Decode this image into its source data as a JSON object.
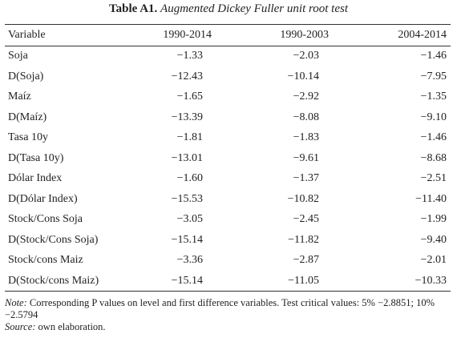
{
  "title": {
    "label": "Table A1.",
    "text": "Augmented Dickey Fuller unit root test"
  },
  "table": {
    "header": [
      "Variable",
      "1990-2014",
      "1990-2003",
      "2004-2014"
    ],
    "rows": [
      [
        "Soja",
        "−1.33",
        "−2.03",
        "−1.46"
      ],
      [
        "D(Soja)",
        "−12.43",
        "−10.14",
        "−7.95"
      ],
      [
        "Maíz",
        "−1.65",
        "−2.92",
        "−1.35"
      ],
      [
        "D(Maíz)",
        "−13.39",
        "−8.08",
        "−9.10"
      ],
      [
        "Tasa 10y",
        "−1.81",
        "−1.83",
        "−1.46"
      ],
      [
        "D(Tasa 10y)",
        "−13.01",
        "−9.61",
        "−8.68"
      ],
      [
        "Dólar Index",
        "−1.60",
        "−1.37",
        "−2.51"
      ],
      [
        "D(Dólar Index)",
        "−15.53",
        "−10.82",
        "−11.40"
      ],
      [
        "Stock/Cons Soja",
        "−3.05",
        "−2.45",
        "−1.99"
      ],
      [
        "D(Stock/Cons Soja)",
        "−15.14",
        "−11.82",
        "−9.40"
      ],
      [
        "Stock/cons Maiz",
        "−3.36",
        "−2.87",
        "−2.01"
      ],
      [
        "D(Stock/cons Maiz)",
        "−15.14",
        "−11.05",
        "−10.33"
      ]
    ]
  },
  "note": {
    "label": "Note:",
    "text": "Corresponding P values on level and first difference variables. Test critical values: 5% −2.8851; 10% −2.5794"
  },
  "source": {
    "label": "Source:",
    "text": "own elaboration."
  }
}
